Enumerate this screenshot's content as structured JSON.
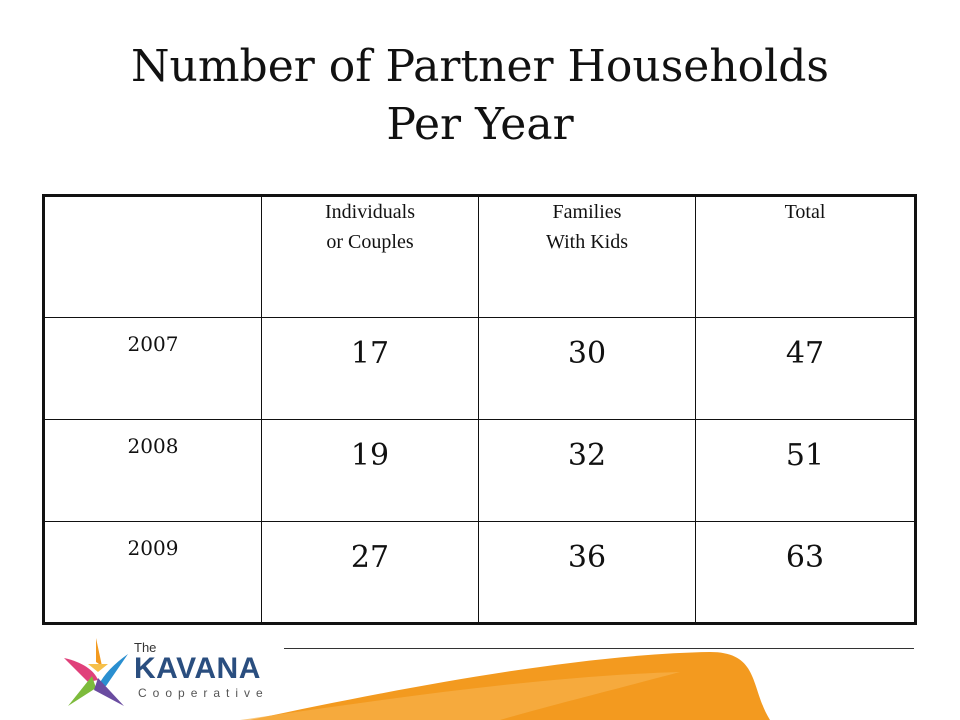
{
  "title": {
    "line1": "Number of Partner Households",
    "line2": "Per Year"
  },
  "table": {
    "headers": [
      "",
      "Individuals or Couples",
      "Families With Kids",
      "Total"
    ],
    "rows": [
      {
        "year": "2007",
        "individuals": "17",
        "families": "30",
        "total": "47"
      },
      {
        "year": "2008",
        "individuals": "19",
        "families": "32",
        "total": "51"
      },
      {
        "year": "2009",
        "individuals": "27",
        "families": "36",
        "total": "63"
      }
    ]
  },
  "logo": {
    "the": "The",
    "name": "KAVANA",
    "sub": "Cooperative"
  },
  "colors": {
    "orange": "#f39a1f",
    "blue": "#2a4e7f"
  }
}
